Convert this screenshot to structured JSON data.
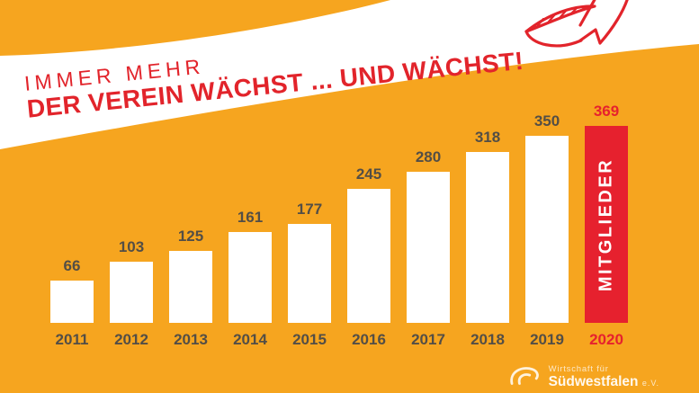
{
  "colors": {
    "background_orange": "#F6A51F",
    "accent_red": "#E6212E",
    "banner_white": "#FFFFFF",
    "label_dark_gray": "#534E46",
    "logo_white": "#FFFFFF"
  },
  "chart_data": {
    "type": "bar",
    "subtitle": "IMMER MEHR",
    "title": "DER VEREIN WÄCHST ... UND WÄCHST!",
    "categories": [
      "2011",
      "2012",
      "2013",
      "2014",
      "2015",
      "2016",
      "2017",
      "2018",
      "2019",
      "2020"
    ],
    "values": [
      66,
      103,
      125,
      161,
      177,
      245,
      280,
      318,
      350,
      369
    ],
    "highlight_category": "2020",
    "highlight_label": "MITGLIEDER",
    "bar_color": "#FFFFFF",
    "highlight_color": "#E6212E",
    "value_labels_shown": true,
    "xlabel": "",
    "ylabel": "",
    "ylim": [
      0,
      380
    ],
    "grid": false,
    "legend": false
  },
  "logo": {
    "line1": "Wirtschaft für",
    "line2": "Südwestfalen",
    "suffix": "e.V."
  },
  "icons": {
    "growth_arrow": "growth-arrow-icon",
    "logo_swoosh": "swoosh-icon"
  }
}
